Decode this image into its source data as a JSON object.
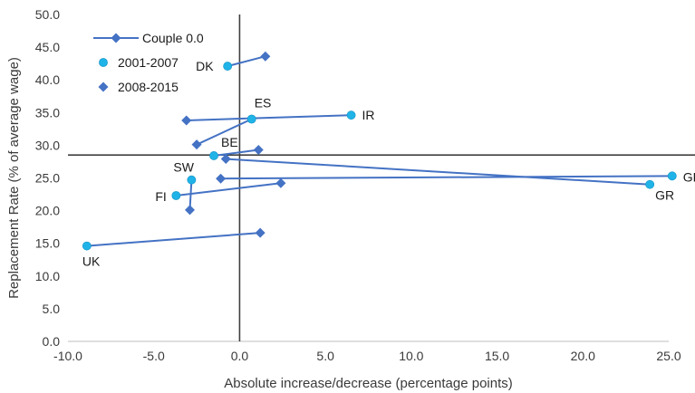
{
  "chart_data": {
    "type": "scatter",
    "title": "",
    "xlabel": "Absolute increase/decrease (percentage points)",
    "ylabel": "Replacement Rate (% of average wage)",
    "xlim": [
      -10,
      25
    ],
    "ylim": [
      0,
      50
    ],
    "x_ticks": [
      "-10.0",
      "-5.0",
      "0.0",
      "5.0",
      "10.0",
      "15.0",
      "20.0",
      "25.0"
    ],
    "y_ticks": [
      "0.0",
      "5.0",
      "10.0",
      "15.0",
      "20.0",
      "25.0",
      "30.0",
      "35.0",
      "40.0",
      "45.0",
      "50.0"
    ],
    "reference_lines": {
      "x": 0,
      "y": 28.5
    },
    "grid": false,
    "legend_position": "top-left",
    "legend": [
      {
        "label": "Couple 0.0",
        "marker": "line-diamond"
      },
      {
        "label": "2001-2007",
        "marker": "circle"
      },
      {
        "label": "2008-2015",
        "marker": "diamond"
      }
    ],
    "colors": {
      "line": "#4472c4",
      "circle": "#1fb3e8",
      "diamond": "#4472c4",
      "reference": "#404040"
    },
    "countries": [
      {
        "code": "DK",
        "p2001_2007": [
          -0.7,
          42.1
        ],
        "p2008_2015": [
          1.5,
          43.6
        ]
      },
      {
        "code": "ES",
        "p2001_2007": [
          0.7,
          34.0
        ],
        "p2008_2015": [
          -2.5,
          30.1
        ]
      },
      {
        "code": "IR",
        "p2001_2007": [
          6.5,
          34.6
        ],
        "p2008_2015": [
          -3.1,
          33.8
        ]
      },
      {
        "code": "BE",
        "p2001_2007": [
          -1.5,
          28.4
        ],
        "p2008_2015": [
          1.1,
          29.3
        ]
      },
      {
        "code": "GE",
        "p2001_2007": [
          25.2,
          25.3
        ],
        "p2008_2015": [
          -1.1,
          24.9
        ]
      },
      {
        "code": "GR",
        "p2001_2007": [
          23.9,
          24.0
        ],
        "p2008_2015": [
          -0.8,
          27.9
        ]
      },
      {
        "code": "SW",
        "p2001_2007": [
          -2.8,
          24.7
        ],
        "p2008_2015": [
          -2.9,
          20.1
        ]
      },
      {
        "code": "FI",
        "p2001_2007": [
          -3.7,
          22.3
        ],
        "p2008_2015": [
          2.4,
          24.2
        ]
      },
      {
        "code": "UK",
        "p2001_2007": [
          -8.9,
          14.6
        ],
        "p2008_2015": [
          1.2,
          16.6
        ]
      }
    ]
  }
}
